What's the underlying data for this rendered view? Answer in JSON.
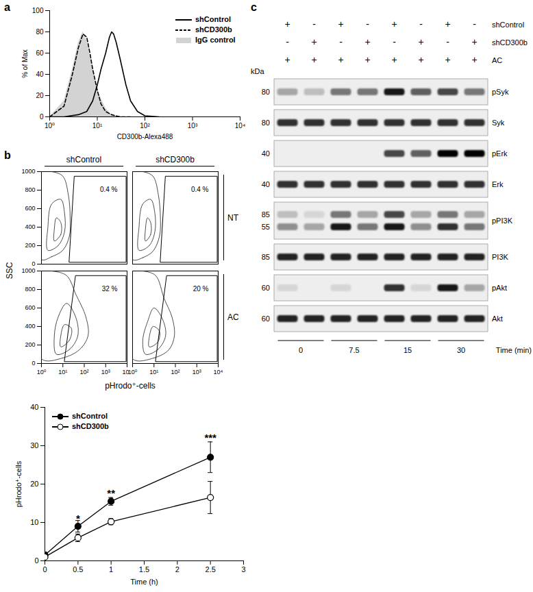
{
  "chart_data": [
    {
      "panel": "a",
      "type": "line",
      "x_label": "CD300b-Alexa488",
      "y_label": "% of Max",
      "log": "x",
      "xlim": [
        1,
        10000
      ],
      "xticks": [
        {
          "value": 1,
          "label": "10⁰"
        },
        {
          "value": 10,
          "label": "10¹"
        },
        {
          "value": 100,
          "label": "10²"
        },
        {
          "value": 1000,
          "label": "10³"
        },
        {
          "value": 10000,
          "label": "10⁴"
        }
      ],
      "ylim": [
        0,
        100
      ],
      "yticks": [
        0,
        20,
        40,
        60,
        80,
        100
      ],
      "legend": "top-right",
      "series": [
        {
          "name": "shControl",
          "color": "#000000",
          "line_style": "solid",
          "x": [
            1,
            2,
            4,
            6,
            8,
            10,
            12,
            15,
            18,
            20,
            22,
            25,
            30,
            40,
            50,
            70,
            100,
            200
          ],
          "values": [
            0,
            0,
            2,
            5,
            15,
            30,
            45,
            60,
            75,
            80,
            78,
            70,
            55,
            30,
            15,
            5,
            1,
            0
          ]
        },
        {
          "name": "shCD300b",
          "color": "#000000",
          "line_style": "dashed",
          "x": [
            1,
            2,
            3,
            4,
            5,
            6,
            7,
            8,
            10,
            12,
            15,
            20,
            30,
            50
          ],
          "values": [
            0,
            10,
            40,
            65,
            78,
            75,
            60,
            45,
            25,
            12,
            5,
            2,
            0,
            0
          ]
        },
        {
          "name": "IgG control",
          "type": "area",
          "color": "#d3d3d3",
          "x": [
            1,
            2,
            3,
            4,
            5,
            6,
            8,
            10,
            15,
            20,
            30
          ],
          "values": [
            0,
            15,
            45,
            70,
            80,
            72,
            45,
            25,
            8,
            2,
            0
          ]
        }
      ]
    },
    {
      "panel": "b",
      "type": "contour",
      "x_label": "pHrodo⁺-cells",
      "y_label": "SSC",
      "log": "x",
      "xlim": [
        1,
        10000
      ],
      "xticks": [
        {
          "value": 1,
          "label": "10⁰"
        },
        {
          "value": 10,
          "label": "10¹"
        },
        {
          "value": 100,
          "label": "10²"
        },
        {
          "value": 1000,
          "label": "10³"
        },
        {
          "value": 10000,
          "label": "10⁴"
        }
      ],
      "ylim": [
        0,
        1000
      ],
      "yticks": [
        0,
        200,
        400,
        600,
        800,
        1000
      ],
      "columns": [
        "shControl",
        "shCD300b"
      ],
      "rows": [
        "NT",
        "AC"
      ],
      "panels": [
        {
          "column": "shControl",
          "row": "NT",
          "tick_labels": "y",
          "gate_label": "0.4 %",
          "gate": [
            [
              20,
              20
            ],
            [
              9000,
              20
            ],
            [
              9000,
              950
            ],
            [
              35,
              950
            ]
          ],
          "contours": [
            [
              [
                1,
                50
              ],
              [
                3,
                80
              ],
              [
                10,
                150
              ],
              [
                20,
                300
              ],
              [
                22,
                500
              ],
              [
                18,
                750
              ],
              [
                10,
                950
              ],
              [
                3,
                1000
              ],
              [
                1,
                1000
              ]
            ],
            [
              [
                2,
                150
              ],
              [
                6,
                200
              ],
              [
                12,
                350
              ],
              [
                12,
                550
              ],
              [
                8,
                700
              ],
              [
                3,
                650
              ],
              [
                2,
                400
              ]
            ],
            [
              [
                4,
                250
              ],
              [
                8,
                320
              ],
              [
                8,
                450
              ],
              [
                5,
                500
              ],
              [
                4,
                380
              ]
            ]
          ]
        },
        {
          "column": "shCD300b",
          "row": "NT",
          "tick_labels": false,
          "gate_label": "0.4 %",
          "gate": [
            [
              20,
              20
            ],
            [
              9000,
              20
            ],
            [
              9000,
              950
            ],
            [
              35,
              950
            ]
          ],
          "contours": [
            [
              [
                1,
                50
              ],
              [
                3,
                70
              ],
              [
                9,
                140
              ],
              [
                18,
                300
              ],
              [
                20,
                500
              ],
              [
                16,
                750
              ],
              [
                9,
                950
              ],
              [
                3,
                1000
              ],
              [
                1,
                1000
              ]
            ],
            [
              [
                2,
                150
              ],
              [
                6,
                200
              ],
              [
                11,
                350
              ],
              [
                11,
                550
              ],
              [
                7,
                700
              ],
              [
                3,
                650
              ],
              [
                2,
                400
              ]
            ],
            [
              [
                4,
                250
              ],
              [
                7,
                320
              ],
              [
                7,
                450
              ],
              [
                5,
                500
              ],
              [
                4,
                380
              ]
            ]
          ]
        },
        {
          "column": "shControl",
          "row": "AC",
          "gate_label": "32 %",
          "gate": [
            [
              12,
              20
            ],
            [
              9000,
              20
            ],
            [
              9000,
              950
            ],
            [
              40,
              950
            ]
          ],
          "contours": [
            [
              [
                1,
                50
              ],
              [
                10,
                60
              ],
              [
                60,
                150
              ],
              [
                150,
                300
              ],
              [
                120,
                500
              ],
              [
                40,
                750
              ],
              [
                15,
                950
              ],
              [
                3,
                1000
              ],
              [
                1,
                1000
              ]
            ],
            [
              [
                5,
                100
              ],
              [
                20,
                150
              ],
              [
                50,
                300
              ],
              [
                40,
                500
              ],
              [
                15,
                650
              ],
              [
                6,
                500
              ],
              [
                4,
                300
              ]
            ],
            [
              [
                8,
                180
              ],
              [
                20,
                250
              ],
              [
                25,
                380
              ],
              [
                12,
                420
              ],
              [
                8,
                300
              ]
            ]
          ]
        },
        {
          "column": "shCD300b",
          "row": "AC",
          "tick_labels": "x",
          "gate_label": "20 %",
          "gate": [
            [
              12,
              20
            ],
            [
              9000,
              20
            ],
            [
              9000,
              950
            ],
            [
              40,
              950
            ]
          ],
          "contours": [
            [
              [
                1,
                50
              ],
              [
                10,
                60
              ],
              [
                50,
                150
              ],
              [
                90,
                300
              ],
              [
                70,
                500
              ],
              [
                30,
                700
              ],
              [
                12,
                950
              ],
              [
                3,
                1000
              ],
              [
                1,
                1000
              ]
            ],
            [
              [
                4,
                100
              ],
              [
                15,
                150
              ],
              [
                35,
                300
              ],
              [
                25,
                480
              ],
              [
                10,
                600
              ],
              [
                5,
                450
              ],
              [
                3,
                250
              ]
            ],
            [
              [
                6,
                180
              ],
              [
                15,
                230
              ],
              [
                18,
                350
              ],
              [
                9,
                400
              ],
              [
                6,
                280
              ]
            ]
          ]
        }
      ]
    },
    {
      "type": "line",
      "x_label": "Time (h)",
      "y_label": "pHrodo⁺-cells",
      "xlim": [
        0,
        3
      ],
      "xticks": [
        0,
        0.5,
        1,
        1.5,
        2,
        2.5,
        3
      ],
      "ylim": [
        0,
        40
      ],
      "yticks": [
        0,
        10,
        20,
        30,
        40
      ],
      "legend": "top-left",
      "series": [
        {
          "name": "shControl",
          "color": "#000000",
          "marker": "filled circle",
          "x": [
            0,
            0.5,
            1,
            2.5
          ],
          "values": [
            1.5,
            9,
            15.5,
            27
          ],
          "errors": [
            0.8,
            1.5,
            1,
            4
          ]
        },
        {
          "name": "shCD300b",
          "color": "#000000",
          "marker": "open circle",
          "x": [
            0,
            0.5,
            1,
            2.5
          ],
          "values": [
            1,
            6,
            10.2,
            16.5
          ],
          "errors": [
            0.5,
            1,
            0.8,
            4.2
          ]
        }
      ],
      "annotations": [
        {
          "text": "*",
          "x": 0.5,
          "y": 11
        },
        {
          "text": "**",
          "x": 1,
          "y": 17.5
        },
        {
          "text": "***",
          "x": 2.5,
          "y": 32
        }
      ]
    }
  ],
  "western_blot": {
    "panel": "c",
    "kda_label": "kDa",
    "time_label": "Time (min)",
    "conditions": [
      {
        "name": "shControl",
        "signs": [
          "+",
          "-",
          "+",
          "-",
          "+",
          "-",
          "+",
          "-"
        ]
      },
      {
        "name": "shCD300b",
        "signs": [
          "-",
          "+",
          "-",
          "+",
          "-",
          "+",
          "-",
          "+"
        ]
      },
      {
        "name": "AC",
        "signs": [
          "+",
          "+",
          "+",
          "+",
          "+",
          "+",
          "+",
          "+"
        ]
      }
    ],
    "times": [
      0,
      7.5,
      15,
      30
    ],
    "intensity_range": [
      0,
      1
    ],
    "blots": [
      {
        "name": "pSyk",
        "kda": [
          80
        ],
        "intensity": [
          [
            0.3,
            0.2,
            0.5,
            0.5,
            0.9,
            0.6,
            0.7,
            0.5
          ]
        ]
      },
      {
        "name": "Syk",
        "kda": [
          80
        ],
        "intensity": [
          [
            0.8,
            0.8,
            0.8,
            0.8,
            0.8,
            0.8,
            0.8,
            0.8
          ]
        ]
      },
      {
        "name": "pErk",
        "kda": [
          40
        ],
        "intensity": [
          [
            0,
            0,
            0,
            0,
            0.7,
            0.6,
            1,
            1
          ]
        ]
      },
      {
        "name": "Erk",
        "kda": [
          40
        ],
        "intensity": [
          [
            0.8,
            0.8,
            0.8,
            0.8,
            0.8,
            0.8,
            0.8,
            0.8
          ]
        ]
      },
      {
        "name": "pPI3K",
        "kda": [
          85,
          55
        ],
        "intensity": [
          [
            0.2,
            0.1,
            0.5,
            0.3,
            0.7,
            0.3,
            0.5,
            0.3
          ],
          [
            0.4,
            0.3,
            0.9,
            0.5,
            0.9,
            0.4,
            0.8,
            0.5
          ]
        ]
      },
      {
        "name": "PI3K",
        "kda": [
          85
        ],
        "intensity": [
          [
            0.85,
            0.85,
            0.85,
            0.85,
            0.85,
            0.85,
            0.85,
            0.85
          ]
        ]
      },
      {
        "name": "pAkt",
        "kda": [
          60
        ],
        "intensity": [
          [
            0.1,
            0,
            0.1,
            0,
            0.8,
            0.1,
            0.9,
            0.3
          ]
        ]
      },
      {
        "name": "Akt",
        "kda": [
          60
        ],
        "intensity": [
          [
            0.85,
            0.85,
            0.85,
            0.85,
            0.85,
            0.85,
            0.85,
            0.85
          ]
        ]
      }
    ]
  }
}
